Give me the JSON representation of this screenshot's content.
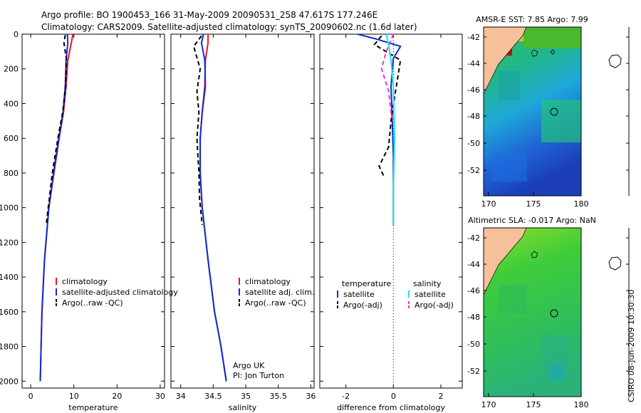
{
  "figure": {
    "title_line1": "Argo profile: BO 1900453_166 31-May-2009 20090531_258 47.617S 177.246E",
    "title_line2": "Climatology: CARS2009. Satellite-adjusted climatology: synTS_20090602.nc (1.6d later)",
    "credit": "CSIRO 08-Jun-2009 10:30:30"
  },
  "colors": {
    "climatology": "#e8141b",
    "satellite": "#0b2bd8",
    "argo": "#000000",
    "sat_salinity": "#19e6e6",
    "argo_salinity_adj": "#e633e6",
    "land": "#f5c09a"
  },
  "chart_data": [
    {
      "type": "line",
      "xlabel": "temperature",
      "ylabel": "",
      "xlim": [
        -2,
        31
      ],
      "ylim": [
        2040,
        0
      ],
      "xticks": [
        0,
        10,
        20,
        30
      ],
      "yticks": [
        0,
        200,
        400,
        600,
        800,
        1000,
        1200,
        1400,
        1600,
        1800,
        2000
      ],
      "legend": {
        "placement": "lower-center",
        "entries": [
          "climatology",
          "satellite-adjusted climatology",
          "Argo(..raw -QC)"
        ]
      },
      "series": [
        {
          "name": "climatology",
          "x": [
            9.8,
            9.4,
            8.6,
            8.2,
            7.6,
            6.6,
            5.4,
            4.2,
            3.2,
            2.6,
            2.2
          ],
          "y": [
            0,
            50,
            150,
            300,
            450,
            600,
            800,
            1000,
            1300,
            1600,
            2000
          ]
        },
        {
          "name": "satellite-adjusted climatology",
          "x": [
            8.5,
            8.6,
            8.2,
            8.0,
            7.5,
            6.5,
            5.3,
            4.2,
            3.2,
            2.6,
            2.2
          ],
          "y": [
            0,
            50,
            150,
            300,
            450,
            600,
            800,
            1000,
            1300,
            1600,
            2000
          ]
        },
        {
          "name": "Argo(..raw -QC)",
          "x": [
            8.0,
            7.7,
            8.3,
            8.1,
            7.4,
            6.3,
            5.0,
            4.3,
            3.8,
            3.6
          ],
          "y": [
            5,
            50,
            150,
            300,
            450,
            600,
            800,
            950,
            1050,
            1100
          ]
        }
      ]
    },
    {
      "type": "line",
      "xlabel": "salinity",
      "ylabel": "",
      "xlim": [
        33.85,
        36.05
      ],
      "ylim": [
        2040,
        0
      ],
      "xticks": [
        34,
        34.5,
        35,
        35.5,
        36
      ],
      "legend": {
        "placement": "lower-center",
        "entries": [
          "climatology",
          "satellite adj. clim.",
          "Argo(..raw -QC)"
        ]
      },
      "annotation": [
        "Argo UK",
        "PI: Jon Turton"
      ],
      "series": [
        {
          "name": "climatology",
          "x": [
            34.42,
            34.42,
            34.38,
            34.37,
            34.33,
            34.3,
            34.3,
            34.33,
            34.42,
            34.52,
            34.62,
            34.7
          ],
          "y": [
            0,
            50,
            150,
            300,
            450,
            600,
            800,
            1000,
            1300,
            1600,
            1800,
            2000
          ]
        },
        {
          "name": "satellite adj. clim.",
          "x": [
            34.35,
            34.32,
            34.37,
            34.38,
            34.33,
            34.3,
            34.3,
            34.33,
            34.42,
            34.52,
            34.62,
            34.7
          ],
          "y": [
            0,
            50,
            150,
            300,
            450,
            600,
            800,
            1000,
            1300,
            1600,
            1800,
            2000
          ]
        },
        {
          "name": "Argo(..raw -QC)",
          "x": [
            34.32,
            34.2,
            34.3,
            34.25,
            34.28,
            34.25,
            34.28,
            34.29,
            34.33
          ],
          "y": [
            10,
            70,
            200,
            330,
            450,
            600,
            800,
            950,
            1100
          ]
        }
      ]
    },
    {
      "type": "line",
      "xlabel": "difference from climatology",
      "ylabel": "",
      "xlim": [
        -3.1,
        2.9
      ],
      "ylim": [
        2040,
        0
      ],
      "xticks": [
        -2,
        0,
        2
      ],
      "legend": {
        "placement": "lower-center",
        "entries": [
          "temperature",
          "satellite",
          "Argo(-adj)",
          "salinity",
          "satellite",
          "Argo(-adj)"
        ]
      },
      "series": [
        {
          "name": "satellite",
          "x": [
            -1.5,
            -0.8,
            0.3,
            0.0,
            -0.1,
            -0.05,
            0.0,
            0.0,
            0.0
          ],
          "y": [
            0,
            25,
            70,
            140,
            300,
            500,
            700,
            900,
            1100
          ]
        },
        {
          "name": "Argo(-adj)",
          "x": [
            -0.5,
            -0.8,
            0.3,
            0.1,
            -0.1,
            -0.2,
            -0.6,
            -0.4
          ],
          "y": [
            10,
            60,
            150,
            320,
            500,
            650,
            760,
            820
          ]
        },
        {
          "name": "satellite",
          "x": [
            -0.3,
            -0.2,
            -0.1,
            0.0,
            0.05,
            0.0,
            0.0
          ],
          "y": [
            0,
            60,
            150,
            300,
            600,
            900,
            1100
          ]
        },
        {
          "name": "Argo(-adj)",
          "x": [
            0.0,
            -0.3,
            -0.5,
            -0.2,
            -0.1,
            0.0
          ],
          "y": [
            0,
            100,
            200,
            330,
            450,
            500
          ]
        }
      ]
    }
  ],
  "maps": [
    {
      "title": "AMSR-E SST: 7.85 Argo: 7.99",
      "xticks": [
        "170",
        "175",
        "180"
      ],
      "yticks": [
        "-42",
        "-44",
        "-46",
        "-48",
        "-50",
        "-52"
      ]
    },
    {
      "title": "Altimetric SLA: -0.017 Argo: NaN",
      "xticks": [
        "170",
        "175",
        "180"
      ],
      "yticks": [
        "-42",
        "-44",
        "-46",
        "-48",
        "-50",
        "-52"
      ]
    }
  ]
}
